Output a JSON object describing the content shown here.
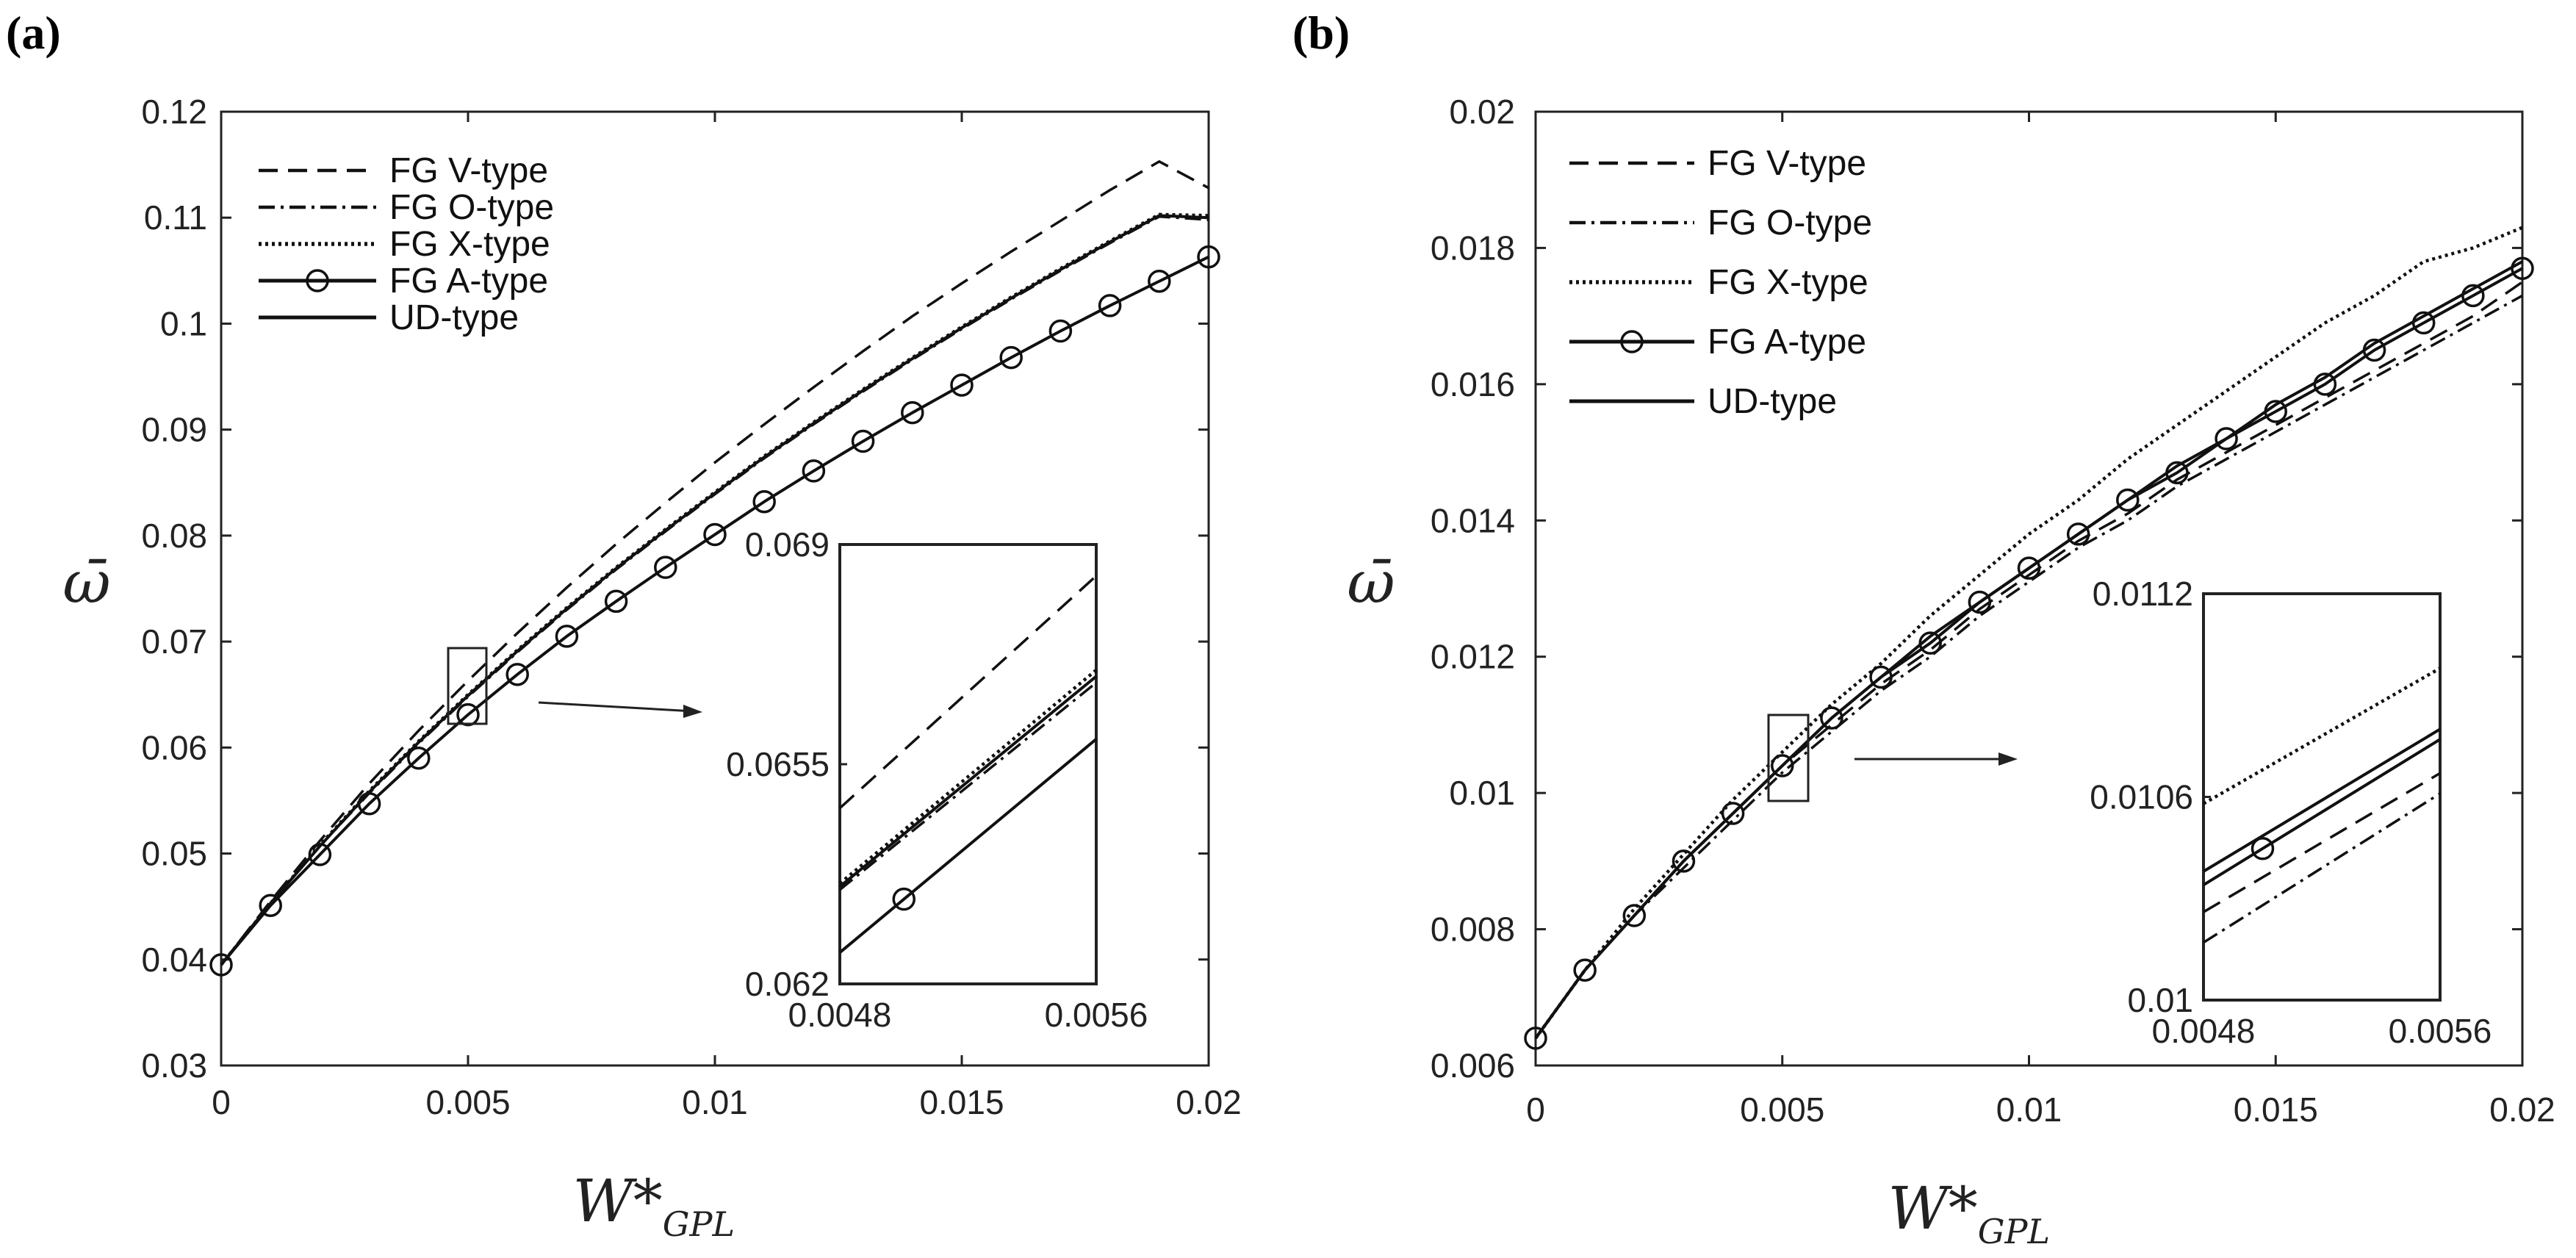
{
  "chart_data": [
    {
      "type": "line",
      "panel_label": "(a)",
      "xlabel": "W*",
      "xlabel_sub": "GPL",
      "ylabel": "ω̄",
      "xlim": [
        0,
        0.02
      ],
      "ylim": [
        0.03,
        0.12
      ],
      "xticks": [
        "0",
        "0.005",
        "0.01",
        "0.015",
        "0.02"
      ],
      "yticks": [
        "0.03",
        "0.04",
        "0.05",
        "0.06",
        "0.07",
        "0.08",
        "0.09",
        "0.1",
        "0.11",
        "0.12"
      ],
      "legend": [
        "FG V-type",
        "FG O-type",
        "FG X-type",
        "FG A-type",
        "UD-type"
      ],
      "legend_position": "top-left",
      "series": [
        {
          "name": "FG V-type",
          "style": "dashed",
          "x": [
            0,
            0.001,
            0.002,
            0.003,
            0.004,
            0.005,
            0.006,
            0.007,
            0.008,
            0.009,
            0.01,
            0.011,
            0.012,
            0.013,
            0.014,
            0.015,
            0.016,
            0.017,
            0.018,
            0.019,
            0.02
          ],
          "values": [
            0.0395,
            0.0455,
            0.0512,
            0.0566,
            0.0616,
            0.0663,
            0.0708,
            0.0751,
            0.0792,
            0.0831,
            0.0869,
            0.0905,
            0.094,
            0.0974,
            0.1007,
            0.1038,
            0.1068,
            0.1097,
            0.1126,
            0.1153,
            0.1128
          ]
        },
        {
          "name": "FG O-type",
          "style": "dashdot",
          "x": [
            0,
            0.001,
            0.002,
            0.003,
            0.004,
            0.005,
            0.006,
            0.007,
            0.008,
            0.009,
            0.01,
            0.011,
            0.012,
            0.013,
            0.014,
            0.015,
            0.016,
            0.017,
            0.018,
            0.019,
            0.02
          ],
          "values": [
            0.0395,
            0.0453,
            0.0507,
            0.0557,
            0.0604,
            0.0648,
            0.069,
            0.073,
            0.0768,
            0.0804,
            0.0839,
            0.0873,
            0.0905,
            0.0936,
            0.0966,
            0.0995,
            0.1023,
            0.105,
            0.1076,
            0.1101,
            0.1098
          ]
        },
        {
          "name": "FG X-type",
          "style": "dotted",
          "x": [
            0,
            0.001,
            0.002,
            0.003,
            0.004,
            0.005,
            0.006,
            0.007,
            0.008,
            0.009,
            0.01,
            0.011,
            0.012,
            0.013,
            0.014,
            0.015,
            0.016,
            0.017,
            0.018,
            0.019,
            0.02
          ],
          "values": [
            0.0395,
            0.0453,
            0.0508,
            0.0559,
            0.0606,
            0.065,
            0.0692,
            0.0732,
            0.077,
            0.0806,
            0.0841,
            0.0875,
            0.0907,
            0.0938,
            0.0968,
            0.0997,
            0.1025,
            0.1052,
            0.1078,
            0.1103,
            0.1102
          ]
        },
        {
          "name": "FG A-type",
          "style": "solid-circles",
          "x": [
            0,
            0.001,
            0.002,
            0.003,
            0.004,
            0.005,
            0.006,
            0.007,
            0.008,
            0.009,
            0.01,
            0.011,
            0.012,
            0.013,
            0.014,
            0.015,
            0.016,
            0.017,
            0.018,
            0.019,
            0.02
          ],
          "values": [
            0.0395,
            0.0451,
            0.0499,
            0.0547,
            0.059,
            0.0631,
            0.0669,
            0.0705,
            0.0738,
            0.077,
            0.0801,
            0.0832,
            0.0861,
            0.0889,
            0.0916,
            0.0942,
            0.0968,
            0.0993,
            0.1017,
            0.104,
            0.1063
          ]
        },
        {
          "name": "UD-type",
          "style": "solid",
          "x": [
            0,
            0.001,
            0.002,
            0.003,
            0.004,
            0.005,
            0.006,
            0.007,
            0.008,
            0.009,
            0.01,
            0.011,
            0.012,
            0.013,
            0.014,
            0.015,
            0.016,
            0.017,
            0.018,
            0.019,
            0.02
          ],
          "values": [
            0.0395,
            0.0453,
            0.0507,
            0.0558,
            0.0605,
            0.0649,
            0.0691,
            0.0731,
            0.0769,
            0.0805,
            0.084,
            0.0874,
            0.0906,
            0.0937,
            0.0967,
            0.0996,
            0.1024,
            0.1051,
            0.1077,
            0.1102,
            0.11
          ]
        }
      ],
      "inset": {
        "xlim": [
          0.0048,
          0.0056
        ],
        "ylim": [
          0.062,
          0.069
        ],
        "xticks": [
          "0.0048",
          "0.0056"
        ],
        "yticks": [
          "0.062",
          "0.0655",
          "0.069"
        ],
        "series": [
          {
            "name": "FG V-type",
            "style": "dashed",
            "x": [
              0.0048,
              0.0056
            ],
            "values": [
              0.0648,
              0.0685
            ]
          },
          {
            "name": "FG X-type",
            "style": "dotted",
            "x": [
              0.0048,
              0.0056
            ],
            "values": [
              0.0636,
              0.067
            ]
          },
          {
            "name": "UD-type",
            "style": "solid",
            "x": [
              0.0048,
              0.0056
            ],
            "values": [
              0.06355,
              0.0669
            ]
          },
          {
            "name": "FG O-type",
            "style": "dashdot",
            "x": [
              0.0048,
              0.0056
            ],
            "values": [
              0.0635,
              0.0668
            ]
          },
          {
            "name": "FG A-type",
            "style": "solid-circles",
            "x": [
              0.0048,
              0.0056
            ],
            "values": [
              0.0625,
              0.0659
            ],
            "marker_x": [
              0.005
            ]
          }
        ]
      }
    },
    {
      "type": "line",
      "panel_label": "(b)",
      "xlabel": "W*",
      "xlabel_sub": "GPL",
      "ylabel": "ω̄",
      "xlim": [
        0,
        0.02
      ],
      "ylim": [
        0.006,
        0.02
      ],
      "xticks": [
        "0",
        "0.005",
        "0.01",
        "0.015",
        "0.02"
      ],
      "yticks": [
        "0.006",
        "0.008",
        "0.01",
        "0.012",
        "0.014",
        "0.016",
        "0.018",
        "0.02"
      ],
      "legend": [
        "FG V-type",
        "FG O-type",
        "FG X-type",
        "FG A-type",
        "UD-type"
      ],
      "legend_position": "top-left",
      "series": [
        {
          "name": "FG V-type",
          "style": "dashed",
          "x": [
            0,
            0.001,
            0.002,
            0.003,
            0.004,
            0.005,
            0.006,
            0.007,
            0.008,
            0.009,
            0.01,
            0.011,
            0.012,
            0.013,
            0.014,
            0.015,
            0.016,
            0.017,
            0.018,
            0.019,
            0.02
          ],
          "values": [
            0.0064,
            0.0074,
            0.0082,
            0.009,
            0.0097,
            0.0104,
            0.011,
            0.0116,
            0.0121,
            0.0127,
            0.0132,
            0.0137,
            0.0141,
            0.0146,
            0.015,
            0.0154,
            0.0158,
            0.0162,
            0.0166,
            0.017,
            0.0175
          ]
        },
        {
          "name": "FG O-type",
          "style": "dashdot",
          "x": [
            0,
            0.001,
            0.002,
            0.003,
            0.004,
            0.005,
            0.006,
            0.007,
            0.008,
            0.009,
            0.01,
            0.011,
            0.012,
            0.013,
            0.014,
            0.015,
            0.016,
            0.017,
            0.018,
            0.019,
            0.02
          ],
          "values": [
            0.0064,
            0.0074,
            0.0082,
            0.0089,
            0.0096,
            0.0103,
            0.0109,
            0.0115,
            0.012,
            0.0126,
            0.0131,
            0.0136,
            0.014,
            0.0145,
            0.0149,
            0.0153,
            0.0157,
            0.0161,
            0.0165,
            0.0169,
            0.0173
          ]
        },
        {
          "name": "FG X-type",
          "style": "dotted",
          "x": [
            0,
            0.001,
            0.002,
            0.003,
            0.004,
            0.005,
            0.006,
            0.007,
            0.008,
            0.009,
            0.01,
            0.011,
            0.012,
            0.013,
            0.014,
            0.015,
            0.016,
            0.017,
            0.018,
            0.019,
            0.02
          ],
          "values": [
            0.0064,
            0.0074,
            0.0083,
            0.0091,
            0.0099,
            0.0106,
            0.0113,
            0.0119,
            0.0126,
            0.0132,
            0.0138,
            0.0143,
            0.0149,
            0.0154,
            0.0159,
            0.0164,
            0.0169,
            0.0173,
            0.0178,
            0.018,
            0.0183
          ]
        },
        {
          "name": "FG A-type",
          "style": "solid-circles",
          "x": [
            0,
            0.001,
            0.002,
            0.003,
            0.004,
            0.005,
            0.006,
            0.007,
            0.008,
            0.009,
            0.01,
            0.011,
            0.012,
            0.013,
            0.014,
            0.015,
            0.016,
            0.017,
            0.018,
            0.019,
            0.02
          ],
          "values": [
            0.0064,
            0.0074,
            0.0082,
            0.009,
            0.0097,
            0.0104,
            0.0111,
            0.0117,
            0.0122,
            0.0128,
            0.0133,
            0.0138,
            0.0143,
            0.0147,
            0.0152,
            0.0156,
            0.016,
            0.0165,
            0.0169,
            0.0173,
            0.0177
          ]
        },
        {
          "name": "UD-type",
          "style": "solid",
          "x": [
            0,
            0.001,
            0.002,
            0.003,
            0.004,
            0.005,
            0.006,
            0.007,
            0.008,
            0.009,
            0.01,
            0.011,
            0.012,
            0.013,
            0.014,
            0.015,
            0.016,
            0.017,
            0.018,
            0.019,
            0.02
          ],
          "values": [
            0.0064,
            0.0074,
            0.0082,
            0.009,
            0.0097,
            0.0104,
            0.0111,
            0.0117,
            0.0123,
            0.0128,
            0.0133,
            0.0138,
            0.0143,
            0.0148,
            0.0152,
            0.0157,
            0.0161,
            0.0166,
            0.017,
            0.0174,
            0.0178
          ]
        }
      ],
      "inset": {
        "xlim": [
          0.0048,
          0.0056
        ],
        "ylim": [
          0.01,
          0.0112
        ],
        "xticks": [
          "0.0048",
          "0.0056"
        ],
        "yticks": [
          "0.01",
          "0.0106",
          "0.0112"
        ],
        "series": [
          {
            "name": "FG X-type",
            "style": "dotted",
            "x": [
              0.0048,
              0.0056
            ],
            "values": [
              0.01058,
              0.01098
            ]
          },
          {
            "name": "UD-type",
            "style": "solid",
            "x": [
              0.0048,
              0.0056
            ],
            "values": [
              0.01038,
              0.0108
            ]
          },
          {
            "name": "FG A-type",
            "style": "solid-circles",
            "x": [
              0.0048,
              0.0056
            ],
            "values": [
              0.01034,
              0.01077
            ],
            "marker_x": [
              0.005
            ]
          },
          {
            "name": "FG V-type",
            "style": "dashed",
            "x": [
              0.0048,
              0.0056
            ],
            "values": [
              0.01026,
              0.01067
            ]
          },
          {
            "name": "FG O-type",
            "style": "dashdot",
            "x": [
              0.0048,
              0.0056
            ],
            "values": [
              0.01017,
              0.01061
            ]
          }
        ]
      }
    }
  ]
}
